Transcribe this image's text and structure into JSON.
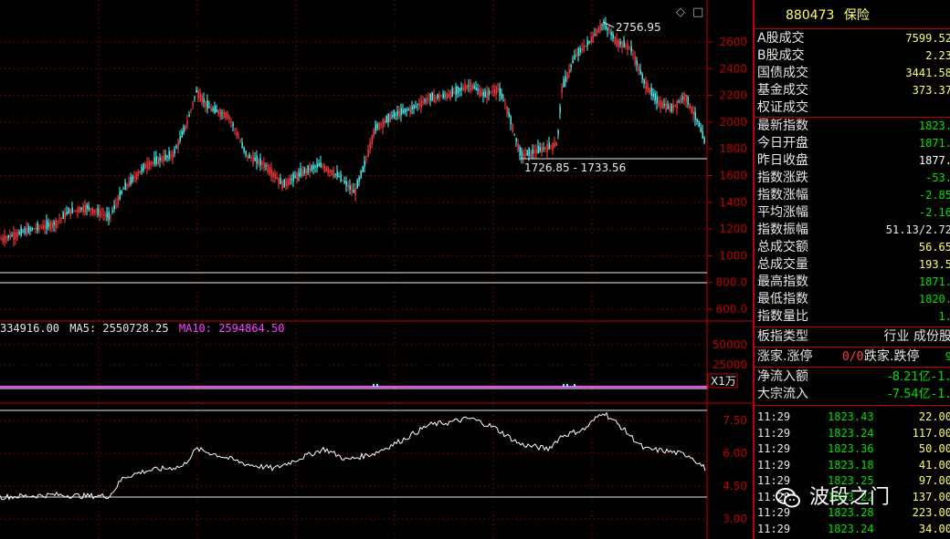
{
  "stock": {
    "code": "880473",
    "name": "保险"
  },
  "main_chart": {
    "price_ticks": [
      "2600",
      "2400",
      "2200",
      "2000",
      "1800",
      "1600",
      "1400",
      "1200",
      "1000",
      "800.0",
      "600.0"
    ],
    "high_label": "2756.95",
    "low_label": "1726.85 - 1733.56"
  },
  "volume_panel": {
    "prefix": "334916.00",
    "ma5": "MA5: 2550728.25",
    "ma10": "MA10: 2594864.50",
    "ticks": [
      "50000",
      "25000"
    ],
    "unit": "X1万"
  },
  "indicator_panel": {
    "ticks": [
      "7.50",
      "6.00",
      "4.50",
      "3.00"
    ]
  },
  "controls": {
    "diamond": "◇",
    "box": "□"
  },
  "info_rows": [
    {
      "label": "A股成交",
      "value": "7599.52"
    },
    {
      "label": "B股成交",
      "value": "2.23"
    },
    {
      "label": "国债成交",
      "value": "3441.58"
    },
    {
      "label": "基金成交",
      "value": "373.37"
    },
    {
      "label": "权证成交",
      "value": ""
    },
    {
      "label": "最新指数",
      "value": "1823."
    },
    {
      "label": "今日开盘",
      "value": "1871."
    },
    {
      "label": "昨日收盘",
      "value": "1877."
    },
    {
      "label": "指数涨跌",
      "value": "-53."
    },
    {
      "label": "指数涨幅",
      "value": "-2.85"
    },
    {
      "label": "平均涨幅",
      "value": "-2.16"
    },
    {
      "label": "指数振幅",
      "value": "51.13/2.72"
    },
    {
      "label": "总成交额",
      "value": "56.65"
    },
    {
      "label": "总成交量",
      "value": "193.5"
    },
    {
      "label": "最高指数",
      "value": "1871."
    },
    {
      "label": "最低指数",
      "value": "1820."
    },
    {
      "label": "指数量比",
      "value": "1."
    }
  ],
  "board": {
    "label": "板指类型",
    "value": "行业 成份股"
  },
  "updown": {
    "rise_label": "涨家.涨停",
    "rise_value": "0/0",
    "fall_label": "跌家.跌停",
    "fall_value": "9"
  },
  "flows": [
    {
      "label": "净流入额",
      "value": "-8.21亿",
      "extra": "-1."
    },
    {
      "label": "大宗流入",
      "value": "-7.54亿",
      "extra": "-1."
    }
  ],
  "ticks_list": [
    {
      "time": "11:29",
      "price": "1823.43",
      "vol": "22.00"
    },
    {
      "time": "11:29",
      "price": "1823.24",
      "vol": "117.00"
    },
    {
      "time": "11:29",
      "price": "1823.36",
      "vol": "50.00"
    },
    {
      "time": "11:29",
      "price": "1823.18",
      "vol": "41.00"
    },
    {
      "time": "11:29",
      "price": "1823.25",
      "vol": "97.00"
    },
    {
      "time": "11:29",
      "price": "1823.22",
      "vol": "137.00"
    },
    {
      "time": "11:29",
      "price": "1823.28",
      "vol": "223.00"
    },
    {
      "time": "11:29",
      "price": "1823.24",
      "vol": "34.00"
    }
  ],
  "watermark": "波段之门",
  "colors": {
    "up": "#ff4040",
    "down": "#54ffff",
    "grid": "#c00000",
    "ma10": "#ff40ff"
  }
}
